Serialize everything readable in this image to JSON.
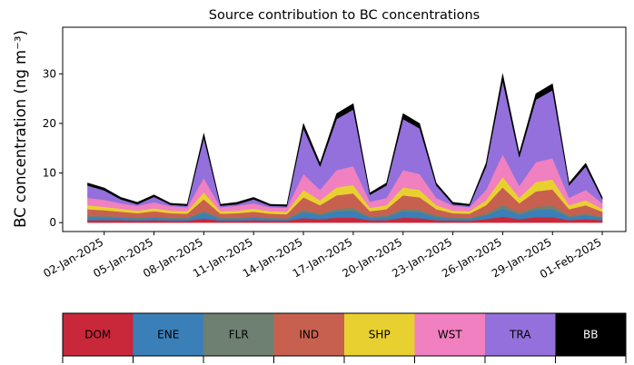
{
  "chart_data": {
    "type": "stacked_area",
    "title": "Source contribution to BC concentrations",
    "y_label": "BC concentration (ng m⁻³)",
    "x": [
      "2025-01-01",
      "2025-01-02",
      "2025-01-03",
      "2025-01-04",
      "2025-01-05",
      "2025-01-06",
      "2025-01-07",
      "2025-01-08",
      "2025-01-09",
      "2025-01-10",
      "2025-01-11",
      "2025-01-12",
      "2025-01-13",
      "2025-01-14",
      "2025-01-15",
      "2025-01-16",
      "2025-01-17",
      "2025-01-18",
      "2025-01-19",
      "2025-01-20",
      "2025-01-21",
      "2025-01-22",
      "2025-01-23",
      "2025-01-24",
      "2025-01-25",
      "2025-01-26",
      "2025-01-27",
      "2025-01-28",
      "2025-01-29",
      "2025-01-30",
      "2025-01-31",
      "2025-02-01"
    ],
    "series": [
      {
        "name": "DOM",
        "color": "#c8283a",
        "values": [
          0.5,
          0.5,
          0.5,
          0.4,
          0.5,
          0.4,
          0.4,
          0.8,
          0.4,
          0.4,
          0.5,
          0.4,
          0.4,
          0.9,
          0.7,
          1.0,
          1.0,
          0.5,
          0.5,
          1.0,
          0.9,
          0.5,
          0.4,
          0.4,
          0.7,
          1.2,
          0.7,
          1.1,
          1.1,
          0.5,
          0.7,
          0.5
        ]
      },
      {
        "name": "ENE",
        "color": "#3a7fb8",
        "values": [
          0.6,
          0.6,
          0.5,
          0.4,
          0.5,
          0.4,
          0.4,
          1.1,
          0.4,
          0.4,
          0.5,
          0.4,
          0.3,
          1.2,
          0.8,
          1.3,
          1.4,
          0.5,
          0.6,
          1.3,
          1.2,
          0.6,
          0.4,
          0.4,
          0.8,
          1.7,
          0.9,
          1.5,
          1.6,
          0.6,
          0.8,
          0.5
        ]
      },
      {
        "name": "FLR",
        "color": "#6e8070",
        "values": [
          0.3,
          0.2,
          0.2,
          0.2,
          0.2,
          0.2,
          0.2,
          0.5,
          0.2,
          0.2,
          0.2,
          0.2,
          0.2,
          0.5,
          0.3,
          0.5,
          0.6,
          0.2,
          0.3,
          0.5,
          0.5,
          0.3,
          0.2,
          0.2,
          0.3,
          0.7,
          0.4,
          0.6,
          0.7,
          0.3,
          0.3,
          0.2
        ]
      },
      {
        "name": "IND",
        "color": "#c86050",
        "values": [
          1.3,
          1.2,
          1.0,
          0.9,
          1.1,
          0.9,
          0.8,
          2.3,
          0.8,
          0.9,
          1.0,
          0.8,
          0.8,
          2.5,
          1.7,
          2.7,
          2.9,
          1.1,
          1.3,
          2.7,
          2.5,
          1.3,
          0.9,
          0.8,
          1.7,
          3.5,
          1.9,
          3.1,
          3.3,
          1.3,
          1.7,
          1.0
        ]
      },
      {
        "name": "SHP",
        "color": "#e8d030",
        "values": [
          0.8,
          0.7,
          0.6,
          0.5,
          0.6,
          0.5,
          0.5,
          1.4,
          0.5,
          0.5,
          0.6,
          0.5,
          0.5,
          1.5,
          1.0,
          1.6,
          1.7,
          0.7,
          0.8,
          1.6,
          1.5,
          0.8,
          0.5,
          0.5,
          1.0,
          2.1,
          1.1,
          1.9,
          2.0,
          0.8,
          1.0,
          0.6
        ]
      },
      {
        "name": "WST",
        "color": "#f080c0",
        "values": [
          1.5,
          1.4,
          1.1,
          1.0,
          1.2,
          0.9,
          0.8,
          2.9,
          0.8,
          1.0,
          1.1,
          0.8,
          0.8,
          3.2,
          2.1,
          3.5,
          3.8,
          1.2,
          1.5,
          3.5,
          3.2,
          1.5,
          1.0,
          0.8,
          2.1,
          4.6,
          2.4,
          4.0,
          4.3,
          1.5,
          2.1,
          1.1
        ]
      },
      {
        "name": "TRA",
        "color": "#9370db",
        "values": [
          2.5,
          1.9,
          0.8,
          0.3,
          1.1,
          0.3,
          0.3,
          8.1,
          0.3,
          0.3,
          0.8,
          0.3,
          0.3,
          9.2,
          4.7,
          10.3,
          11.4,
          1.4,
          2.5,
          10.3,
          9.2,
          2.5,
          0.3,
          0.3,
          4.7,
          14.8,
          5.8,
          12.6,
          13.7,
          2.5,
          4.7,
          0.8
        ]
      },
      {
        "name": "BB",
        "color": "#000000",
        "values": [
          0.5,
          0.5,
          0.4,
          0.4,
          0.4,
          0.3,
          0.3,
          0.9,
          0.3,
          0.4,
          0.4,
          0.3,
          0.3,
          1.0,
          0.7,
          1.1,
          1.2,
          0.4,
          0.5,
          1.1,
          1.0,
          0.5,
          0.4,
          0.3,
          0.7,
          1.4,
          0.8,
          1.2,
          1.3,
          0.5,
          0.7,
          0.4
        ]
      }
    ],
    "xlim": [
      "2024-12-30T12:00:00Z",
      "2025-02-02T10:00:00Z"
    ],
    "xticks": [
      {
        "value": "2025-01-02",
        "label": "02-Jan-2025"
      },
      {
        "value": "2025-01-05",
        "label": "05-Jan-2025"
      },
      {
        "value": "2025-01-08",
        "label": "08-Jan-2025"
      },
      {
        "value": "2025-01-11",
        "label": "11-Jan-2025"
      },
      {
        "value": "2025-01-14",
        "label": "14-Jan-2025"
      },
      {
        "value": "2025-01-17",
        "label": "17-Jan-2025"
      },
      {
        "value": "2025-01-20",
        "label": "20-Jan-2025"
      },
      {
        "value": "2025-01-23",
        "label": "23-Jan-2025"
      },
      {
        "value": "2025-01-26",
        "label": "26-Jan-2025"
      },
      {
        "value": "2025-01-29",
        "label": "29-Jan-2025"
      },
      {
        "value": "2025-02-01",
        "label": "01-Feb-2025"
      }
    ],
    "ylim": [
      -1.8,
      39.4
    ],
    "yticks": [
      0,
      10,
      20,
      30
    ]
  }
}
